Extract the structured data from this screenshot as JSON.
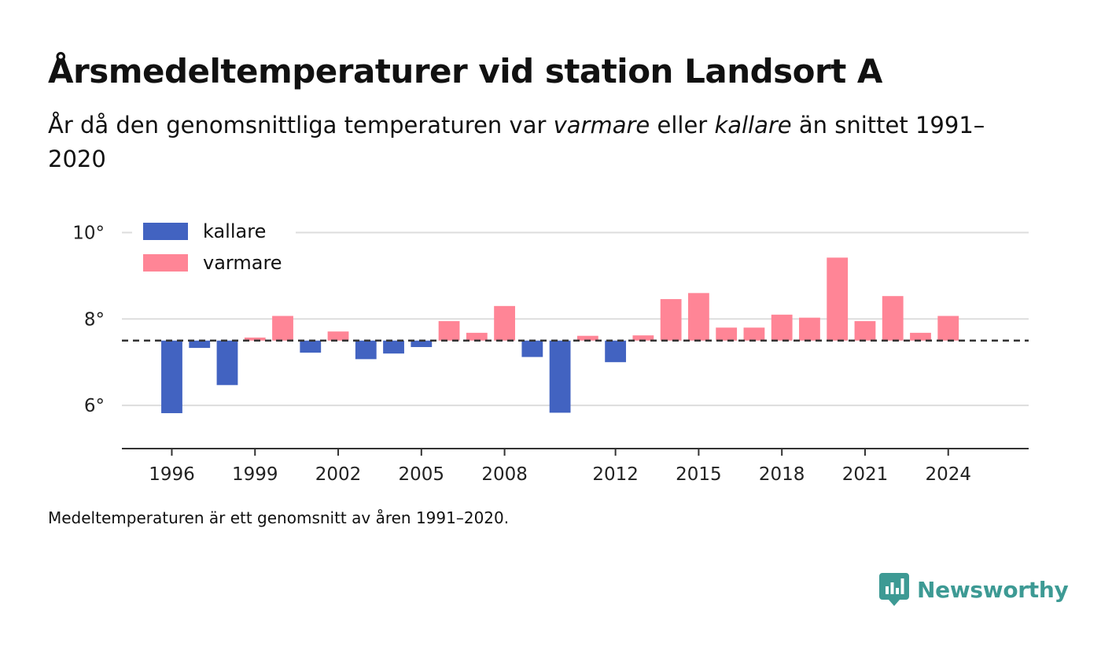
{
  "title": "Årsmedeltemperaturer vid station Landsort A",
  "subtitle": {
    "before": "År då den genomsnittliga temperaturen var ",
    "warm_word": "varmare",
    "middle": " eller ",
    "cold_word": "kallare",
    "after": " än snittet 1991–2020"
  },
  "note": "Medeltemperaturen är ett genomsnitt av åren 1991–2020.",
  "brand": "Newsworthy",
  "colors": {
    "colder": "#4263c1",
    "warmer": "#ff8596",
    "grid": "#dddddd",
    "axis": "#333333",
    "brand": "#3d9a94"
  },
  "chart_data": {
    "type": "bar",
    "baseline": 7.5,
    "baseline_style": "dashed",
    "ylim": [
      5,
      10.1
    ],
    "yticks": [
      6,
      8,
      10
    ],
    "ytick_labels": [
      "6°",
      "8°",
      "10°"
    ],
    "xlim": [
      1994.2,
      2026.9
    ],
    "xticks": [
      1996,
      1999,
      2002,
      2005,
      2008,
      2012,
      2015,
      2018,
      2021,
      2024
    ],
    "xtick_labels": [
      "1996",
      "1999",
      "2002",
      "2005",
      "2008",
      "2012",
      "2015",
      "2018",
      "2021",
      "2024"
    ],
    "grid": true,
    "legend_position": "top-left",
    "legend": [
      {
        "key": "colder",
        "label": "kallare"
      },
      {
        "key": "warmer",
        "label": "varmare"
      }
    ],
    "x": [
      1996,
      1997,
      1998,
      1999,
      2000,
      2001,
      2002,
      2003,
      2004,
      2005,
      2006,
      2007,
      2008,
      2009,
      2010,
      2011,
      2012,
      2013,
      2014,
      2015,
      2016,
      2017,
      2018,
      2019,
      2020,
      2021,
      2022,
      2023,
      2024
    ],
    "values": [
      5.82,
      7.33,
      6.47,
      7.57,
      8.07,
      7.22,
      7.71,
      7.07,
      7.2,
      7.35,
      7.95,
      7.68,
      8.3,
      7.12,
      5.83,
      7.61,
      7.0,
      7.62,
      8.46,
      8.6,
      7.8,
      7.8,
      8.1,
      8.03,
      9.42,
      7.95,
      8.53,
      7.68,
      8.07
    ]
  }
}
